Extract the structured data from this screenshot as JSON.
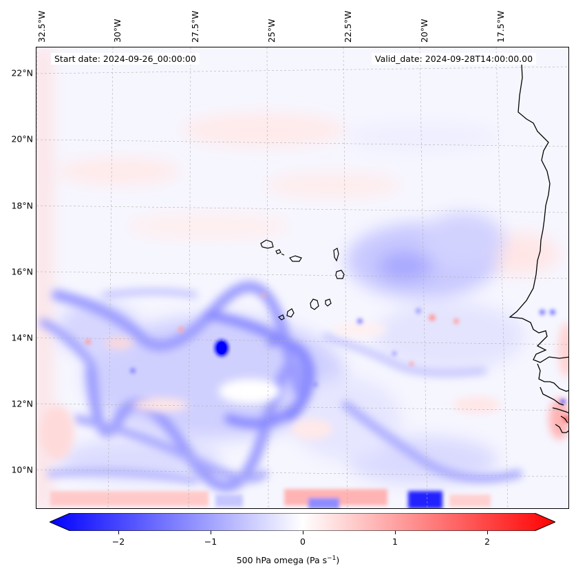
{
  "header": {
    "start_date": "Start date: 2024-09-26_00:00:00",
    "valid_date": "Valid_date: 2024-09-28T14:00:00.00"
  },
  "axes": {
    "lon_labels": [
      "32.5°W",
      "30°W",
      "27.5°W",
      "25°W",
      "22.5°W",
      "20°W",
      "17.5°W"
    ],
    "lat_labels": [
      "22°N",
      "20°N",
      "18°N",
      "16°N",
      "14°N",
      "12°N",
      "10°N"
    ]
  },
  "colorbar": {
    "ticks": [
      "−2",
      "−1",
      "0",
      "1",
      "2"
    ],
    "tick_values": [
      -2,
      -1,
      0,
      1,
      2
    ],
    "range": [
      -2.5,
      2.5
    ],
    "label_main": "500 hPa omega (Pa s",
    "label_sup": "−1",
    "label_end": ")",
    "colormap": "bwr",
    "colors": {
      "low": "#0000ff",
      "mid": "#ffffff",
      "high": "#ff0000"
    }
  },
  "map": {
    "gridlines": "dashed",
    "coastline_color": "#000000",
    "region": "Cabo Verde islands and West African coast"
  }
}
